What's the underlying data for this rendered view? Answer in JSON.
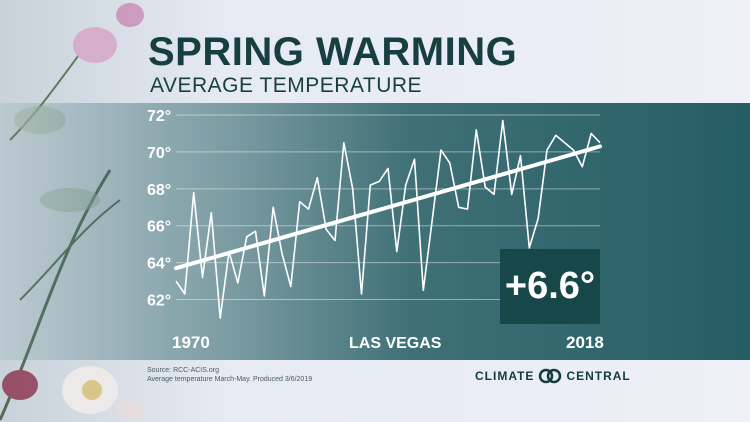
{
  "header": {
    "title": "Spring Warming",
    "subtitle": "Average Temperature"
  },
  "badge": {
    "text": "+6.6°"
  },
  "footer": {
    "source": "Source: RCC-ACIS.org",
    "note": "Average temperature March-May. Produced 3/6/2019"
  },
  "logo": {
    "left": "CLIMATE",
    "right": "CENTRAL"
  },
  "colors": {
    "title": "#173f3f",
    "band": "#1f5a5f",
    "line": "#ffffff",
    "grid": "#ffffff",
    "badge_bg": "#18474a"
  },
  "chart_data": {
    "type": "line",
    "title": "Spring Warming",
    "subtitle": "Average Temperature",
    "location_label": "LAS VEGAS",
    "x_start_label": "1970",
    "x_end_label": "2018",
    "xlim": [
      1970,
      2018
    ],
    "ylim": [
      61,
      72
    ],
    "y_ticks": [
      62,
      64,
      66,
      68,
      70,
      72
    ],
    "y_tick_labels": [
      "62°",
      "64°",
      "66°",
      "68°",
      "70°",
      "72°"
    ],
    "grid": true,
    "series": [
      {
        "x": [
          1970,
          1971,
          1972,
          1973,
          1974,
          1975,
          1976,
          1977,
          1978,
          1979,
          1980,
          1981,
          1982,
          1983,
          1984,
          1985,
          1986,
          1987,
          1988,
          1989,
          1990,
          1991,
          1992,
          1993,
          1994,
          1995,
          1996,
          1997,
          1998,
          1999,
          2000,
          2001,
          2002,
          2003,
          2004,
          2005,
          2006,
          2007,
          2008,
          2009,
          2010,
          2011,
          2012,
          2013,
          2014,
          2015,
          2016,
          2017,
          2018
        ],
        "values": [
          63.0,
          62.3,
          67.8,
          63.2,
          66.7,
          61.0,
          64.6,
          62.9,
          65.4,
          65.7,
          62.2,
          67.0,
          64.5,
          62.7,
          67.3,
          66.9,
          68.6,
          65.8,
          65.2,
          70.5,
          68.0,
          62.3,
          68.2,
          68.4,
          69.1,
          64.6,
          68.2,
          69.6,
          62.5,
          66.3,
          70.1,
          69.4,
          67.0,
          66.9,
          71.2,
          68.1,
          67.7,
          71.7,
          67.7,
          69.8,
          64.8,
          66.4,
          70.1,
          70.9,
          70.5,
          70.1,
          69.2,
          71.0,
          70.5
        ]
      }
    ],
    "trend": {
      "start": [
        1970,
        63.7
      ],
      "end": [
        2018,
        70.3
      ],
      "change": "+6.6°"
    }
  }
}
